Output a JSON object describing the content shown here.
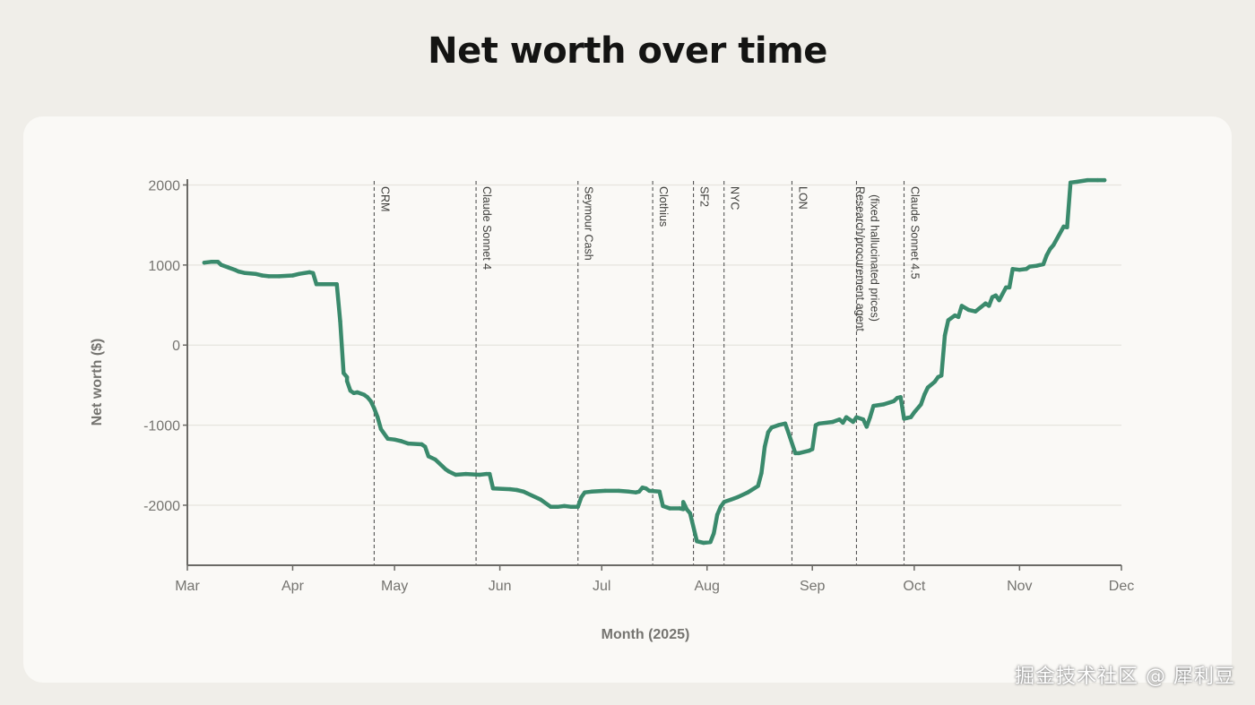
{
  "page": {
    "title": "Net worth over time"
  },
  "watermark": "掘金技术社区 @ 犀利豆",
  "colors": {
    "line": "#3a8a6c",
    "axis": "#6b6a66",
    "grid": "#e6e4de",
    "event": "#555555",
    "text": "#757470"
  },
  "chart_data": {
    "type": "line",
    "title": "Net worth over time",
    "xlabel": "Month (2025)",
    "ylabel": "Net worth ($)",
    "xlim": [
      "2025-03-01",
      "2025-12-01"
    ],
    "ylim": [
      -2750,
      2050
    ],
    "grid": "horizontal",
    "x_ticks": [
      {
        "label": "Mar",
        "date": "2025-03-01"
      },
      {
        "label": "Apr",
        "date": "2025-04-01"
      },
      {
        "label": "May",
        "date": "2025-05-01"
      },
      {
        "label": "Jun",
        "date": "2025-06-01"
      },
      {
        "label": "Jul",
        "date": "2025-07-01"
      },
      {
        "label": "Aug",
        "date": "2025-08-01"
      },
      {
        "label": "Sep",
        "date": "2025-09-01"
      },
      {
        "label": "Oct",
        "date": "2025-10-01"
      },
      {
        "label": "Nov",
        "date": "2025-11-01"
      },
      {
        "label": "Dec",
        "date": "2025-12-01"
      }
    ],
    "y_ticks": [
      {
        "label": "2000",
        "value": 2000
      },
      {
        "label": "1000",
        "value": 1000
      },
      {
        "label": "0",
        "value": 0
      },
      {
        "label": "-1000",
        "value": -1000
      },
      {
        "label": "-2000",
        "value": -2000
      }
    ],
    "events": [
      {
        "lines": [
          "CRM"
        ],
        "date": "2025-04-25"
      },
      {
        "lines": [
          "Claude Sonnet 4"
        ],
        "date": "2025-05-25"
      },
      {
        "lines": [
          "Seymour Cash"
        ],
        "date": "2025-06-24"
      },
      {
        "lines": [
          "Clothius"
        ],
        "date": "2025-07-16"
      },
      {
        "lines": [
          "SF2"
        ],
        "date": "2025-07-28"
      },
      {
        "lines": [
          "NYC"
        ],
        "date": "2025-08-06"
      },
      {
        "lines": [
          "LON"
        ],
        "date": "2025-08-26"
      },
      {
        "lines": [
          "Research/procurement agent",
          "(fixed hallucinated prices)"
        ],
        "date": "2025-09-14"
      },
      {
        "lines": [
          "Claude Sonnet 4.5"
        ],
        "date": "2025-09-28"
      }
    ],
    "series": [
      {
        "x": [
          "2025-03-06",
          "2025-03-08",
          "2025-03-10",
          "2025-03-11",
          "2025-03-13",
          "2025-03-15",
          "2025-03-16",
          "2025-03-18",
          "2025-03-21",
          "2025-03-23",
          "2025-03-25",
          "2025-03-28",
          "2025-04-01",
          "2025-04-03",
          "2025-04-06",
          "2025-04-07",
          "2025-04-08",
          "2025-04-10",
          "2025-04-14",
          "2025-04-15",
          "2025-04-16",
          "2025-04-17",
          "2025-04-17",
          "2025-04-18",
          "2025-04-19",
          "2025-04-20",
          "2025-04-22",
          "2025-04-23",
          "2025-04-24",
          "2025-04-25",
          "2025-04-26",
          "2025-04-27",
          "2025-04-29",
          "2025-05-01",
          "2025-05-03",
          "2025-05-05",
          "2025-05-09",
          "2025-05-10",
          "2025-05-11",
          "2025-05-13",
          "2025-05-16",
          "2025-05-17",
          "2025-05-19",
          "2025-05-22",
          "2025-05-26",
          "2025-05-28",
          "2025-05-29",
          "2025-05-30",
          "2025-06-04",
          "2025-06-06",
          "2025-06-08",
          "2025-06-09",
          "2025-06-13",
          "2025-06-16",
          "2025-06-18",
          "2025-06-20",
          "2025-06-22",
          "2025-06-24",
          "2025-06-25",
          "2025-06-26",
          "2025-06-28",
          "2025-07-02",
          "2025-07-06",
          "2025-07-09",
          "2025-07-11",
          "2025-07-12",
          "2025-07-13",
          "2025-07-14",
          "2025-07-15",
          "2025-07-18",
          "2025-07-19",
          "2025-07-21",
          "2025-07-24",
          "2025-07-25",
          "2025-07-25",
          "2025-07-26",
          "2025-07-27",
          "2025-07-29",
          "2025-07-31",
          "2025-08-02",
          "2025-08-03",
          "2025-08-04",
          "2025-08-05",
          "2025-08-06",
          "2025-08-08",
          "2025-08-10",
          "2025-08-13",
          "2025-08-16",
          "2025-08-17",
          "2025-08-18",
          "2025-08-19",
          "2025-08-20",
          "2025-08-22",
          "2025-08-24",
          "2025-08-25",
          "2025-08-27",
          "2025-08-28",
          "2025-08-31",
          "2025-09-01",
          "2025-09-02",
          "2025-09-03",
          "2025-09-07",
          "2025-09-09",
          "2025-09-10",
          "2025-09-11",
          "2025-09-13",
          "2025-09-14",
          "2025-09-16",
          "2025-09-17",
          "2025-09-18",
          "2025-09-19",
          "2025-09-22",
          "2025-09-25",
          "2025-09-26",
          "2025-09-27",
          "2025-09-28",
          "2025-09-29",
          "2025-09-30",
          "2025-10-01",
          "2025-10-03",
          "2025-10-04",
          "2025-10-05",
          "2025-10-07",
          "2025-10-08",
          "2025-10-09",
          "2025-10-10",
          "2025-10-11",
          "2025-10-13",
          "2025-10-14",
          "2025-10-15",
          "2025-10-17",
          "2025-10-18",
          "2025-10-19",
          "2025-10-22",
          "2025-10-23",
          "2025-10-24",
          "2025-10-25",
          "2025-10-26",
          "2025-10-28",
          "2025-10-29",
          "2025-10-30",
          "2025-11-01",
          "2025-11-03",
          "2025-11-04",
          "2025-11-06",
          "2025-11-08",
          "2025-11-09",
          "2025-11-10",
          "2025-11-11",
          "2025-11-14",
          "2025-11-15",
          "2025-11-16",
          "2025-11-18",
          "2025-11-21",
          "2025-11-24",
          "2025-11-26"
        ],
        "y": [
          1030,
          1040,
          1040,
          1000,
          970,
          940,
          920,
          900,
          890,
          870,
          860,
          860,
          870,
          890,
          910,
          900,
          760,
          760,
          760,
          300,
          -350,
          -400,
          -450,
          -570,
          -600,
          -590,
          -620,
          -650,
          -700,
          -790,
          -900,
          -1050,
          -1170,
          -1180,
          -1200,
          -1230,
          -1240,
          -1270,
          -1390,
          -1430,
          -1550,
          -1580,
          -1620,
          -1610,
          -1620,
          -1610,
          -1610,
          -1790,
          -1800,
          -1810,
          -1830,
          -1850,
          -1930,
          -2020,
          -2020,
          -2010,
          -2020,
          -2020,
          -1900,
          -1840,
          -1830,
          -1820,
          -1820,
          -1830,
          -1840,
          -1830,
          -1780,
          -1790,
          -1820,
          -1830,
          -2010,
          -2040,
          -2040,
          -2050,
          -1960,
          -2050,
          -2100,
          -2450,
          -2470,
          -2460,
          -2350,
          -2120,
          -2020,
          -1960,
          -1930,
          -1900,
          -1840,
          -1760,
          -1600,
          -1270,
          -1090,
          -1030,
          -1000,
          -980,
          -1100,
          -1350,
          -1350,
          -1320,
          -1300,
          -1000,
          -980,
          -960,
          -930,
          -970,
          -900,
          -960,
          -900,
          -930,
          -1020,
          -900,
          -760,
          -740,
          -700,
          -660,
          -650,
          -920,
          -910,
          -900,
          -840,
          -740,
          -620,
          -530,
          -460,
          -400,
          -380,
          120,
          310,
          370,
          350,
          490,
          440,
          430,
          420,
          520,
          490,
          600,
          620,
          560,
          720,
          720,
          950,
          940,
          950,
          980,
          990,
          1010,
          1120,
          1200,
          1250,
          1480,
          1470,
          2030,
          2040,
          2060,
          2060,
          2060
        ]
      }
    ]
  }
}
